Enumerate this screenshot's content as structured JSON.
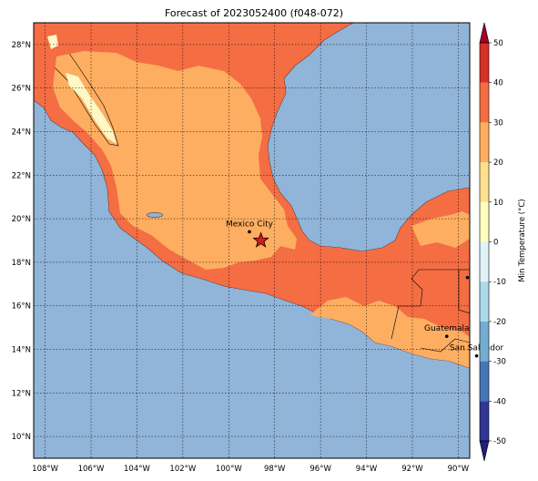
{
  "title": "Forecast of 2023052400 (f048-072)",
  "map": {
    "lon_range": [
      -108.5,
      -89.5
    ],
    "lat_range": [
      9,
      29
    ],
    "ocean_color": "#91b4d9",
    "lat_ticks": [
      {
        "value": 10,
        "label": "10°N"
      },
      {
        "value": 12,
        "label": "12°N"
      },
      {
        "value": 14,
        "label": "14°N"
      },
      {
        "value": 16,
        "label": "16°N"
      },
      {
        "value": 18,
        "label": "18°N"
      },
      {
        "value": 20,
        "label": "20°N"
      },
      {
        "value": 22,
        "label": "22°N"
      },
      {
        "value": 24,
        "label": "24°N"
      },
      {
        "value": 26,
        "label": "26°N"
      },
      {
        "value": 28,
        "label": "28°N"
      }
    ],
    "lon_ticks": [
      {
        "value": -108,
        "label": "108°W"
      },
      {
        "value": -106,
        "label": "106°W"
      },
      {
        "value": -104,
        "label": "104°W"
      },
      {
        "value": -102,
        "label": "102°W"
      },
      {
        "value": -100,
        "label": "100°W"
      },
      {
        "value": -98,
        "label": "98°W"
      },
      {
        "value": -96,
        "label": "96°W"
      },
      {
        "value": -94,
        "label": "94°W"
      },
      {
        "value": -92,
        "label": "92°W"
      },
      {
        "value": -90,
        "label": "90°W"
      }
    ],
    "cities": [
      {
        "name": "Mexico City",
        "lon": -99.1,
        "lat": 19.4
      },
      {
        "name": "Guatemala",
        "lon": -90.5,
        "lat": 14.6
      },
      {
        "name": "San Salvador",
        "lon": -89.2,
        "lat": 13.7
      }
    ],
    "star": {
      "lon": -98.6,
      "lat": 19.0,
      "color": "#d7191c",
      "icon": "star-icon"
    },
    "extra_dot": {
      "lon": -89.6,
      "lat": 17.3
    }
  },
  "colorbar": {
    "label": "Min Temperature (°C)",
    "ticks": [
      -50,
      -40,
      -30,
      -20,
      -10,
      0,
      10,
      20,
      30,
      40,
      50
    ],
    "levels": [
      -50,
      -40,
      -30,
      -20,
      -10,
      0,
      10,
      20,
      30,
      40,
      50
    ],
    "colors": [
      "#313695",
      "#4575b4",
      "#74add1",
      "#abd9e9",
      "#e0f3f8",
      "#ffffbf",
      "#fee090",
      "#fdae61",
      "#f46d43",
      "#d73027"
    ],
    "under_color": "#1f1f7a",
    "over_color": "#a50026",
    "fill_colors": {
      "b10_20": "#fdae61",
      "b20_30": "#f46d43",
      "b0_10": "#fff7c6"
    }
  }
}
